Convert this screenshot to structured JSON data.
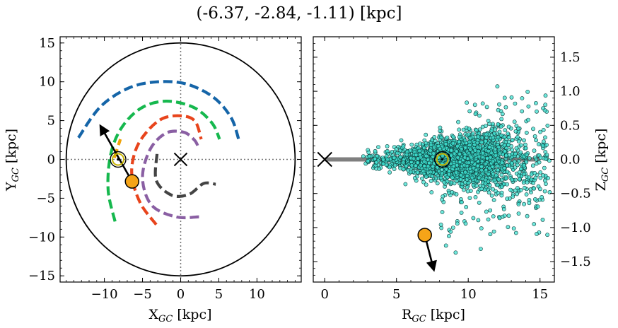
{
  "figure": {
    "title": "(-6.37, -2.84, -1.11) [kpc]"
  },
  "chart_data": [
    {
      "type": "scatter",
      "panel": "left",
      "xlabel": "X_GC [kpc]",
      "ylabel": "Y_GC [kpc]",
      "xlim": [
        -15.8,
        15.8
      ],
      "ylim": [
        -15.8,
        15.8
      ],
      "xticks": [
        -10,
        -5,
        0,
        5,
        10
      ],
      "xtick_labels": [
        "−10",
        "−5",
        "0",
        "5",
        "10"
      ],
      "yticks": [
        -15,
        -10,
        -5,
        0,
        5,
        10,
        15
      ],
      "ytick_labels": [
        "−15",
        "−10",
        "−5",
        "0",
        "5",
        "10",
        "15"
      ],
      "galactic_center": [
        0,
        0
      ],
      "sun_position": [
        -8.2,
        0.0
      ],
      "boundary_circle_radius": 15,
      "spiral_arcs": [
        {
          "color": "#1565a8",
          "points": [
            [
              -13.4,
              2.8
            ],
            [
              -10.5,
              6.8
            ],
            [
              -6.8,
              9.2
            ],
            [
              -3.0,
              10.0
            ],
            [
              0.8,
              9.7
            ],
            [
              4.3,
              8.0
            ],
            [
              6.6,
              5.4
            ],
            [
              7.6,
              2.6
            ]
          ]
        },
        {
          "color": "#16b84e",
          "points": [
            [
              -8.6,
              -8.0
            ],
            [
              -9.5,
              -4.0
            ],
            [
              -9.2,
              0.5
            ],
            [
              -7.8,
              4.0
            ],
            [
              -5.2,
              6.6
            ],
            [
              -1.9,
              7.5
            ],
            [
              1.7,
              6.7
            ],
            [
              4.1,
              4.7
            ],
            [
              5.1,
              2.6
            ]
          ]
        },
        {
          "color": "#f0a30a",
          "points": [
            [
              -8.7,
              0.2
            ],
            [
              -7.9,
              2.6
            ]
          ]
        },
        {
          "color": "#e8441c",
          "points": [
            [
              -3.2,
              -8.4
            ],
            [
              -5.3,
              -5.6
            ],
            [
              -6.4,
              -2.0
            ],
            [
              -5.9,
              1.2
            ],
            [
              -4.4,
              3.6
            ],
            [
              -2.3,
              5.3
            ],
            [
              0.2,
              5.6
            ],
            [
              1.9,
              4.9
            ],
            [
              2.7,
              2.6
            ]
          ]
        },
        {
          "color": "#8a5fa3",
          "points": [
            [
              2.4,
              -7.4
            ],
            [
              -0.6,
              -7.4
            ],
            [
              -3.8,
              -5.9
            ],
            [
              -5.0,
              -2.4
            ],
            [
              -4.0,
              1.3
            ],
            [
              -1.9,
              3.4
            ],
            [
              0.4,
              3.5
            ],
            [
              1.8,
              2.5
            ],
            [
              2.3,
              1.6
            ]
          ]
        },
        {
          "color": "#444444",
          "points": [
            [
              -3.1,
              0.7
            ],
            [
              -3.2,
              -2.7
            ],
            [
              -1.2,
              -4.6
            ],
            [
              1.1,
              -4.5
            ],
            [
              3.0,
              -3.1
            ],
            [
              4.6,
              -3.2
            ]
          ]
        }
      ],
      "object_position": [
        -6.37,
        -2.84
      ],
      "object_velocity_arrow_end": [
        -10.5,
        4.3
      ],
      "object_color": "#f5a418"
    },
    {
      "type": "scatter",
      "panel": "right",
      "xlabel": "R_GC [kpc]",
      "ylabel": "Z_GC [kpc]",
      "xlim": [
        -0.8,
        16.0
      ],
      "ylim": [
        -1.8,
        1.8
      ],
      "xticks": [
        0,
        5,
        10,
        15
      ],
      "xtick_labels": [
        "0",
        "5",
        "10",
        "15"
      ],
      "yticks": [
        -1.5,
        -1.0,
        -0.5,
        0.0,
        0.5,
        1.0,
        1.5
      ],
      "ytick_labels": [
        "−1.5",
        "−1.0",
        "−0.5",
        "0.0",
        "0.5",
        "1.0",
        "1.5"
      ],
      "disk_line": {
        "r": [
          0,
          15
        ],
        "z": 0,
        "color": "#7f7f7f"
      },
      "galactic_center": [
        0,
        0
      ],
      "sun_position": [
        8.2,
        0.0
      ],
      "object_position": [
        6.97,
        -1.11
      ],
      "object_velocity_arrow_end": [
        7.6,
        -1.62
      ],
      "object_color": "#f5a418",
      "star_marker_color": "#3fe0d0",
      "star_cloud": {
        "r_range": [
          1.5,
          15.7
        ],
        "z_range": [
          -1.6,
          1.2
        ],
        "dense_center": [
          9.5,
          0.0
        ]
      }
    }
  ]
}
